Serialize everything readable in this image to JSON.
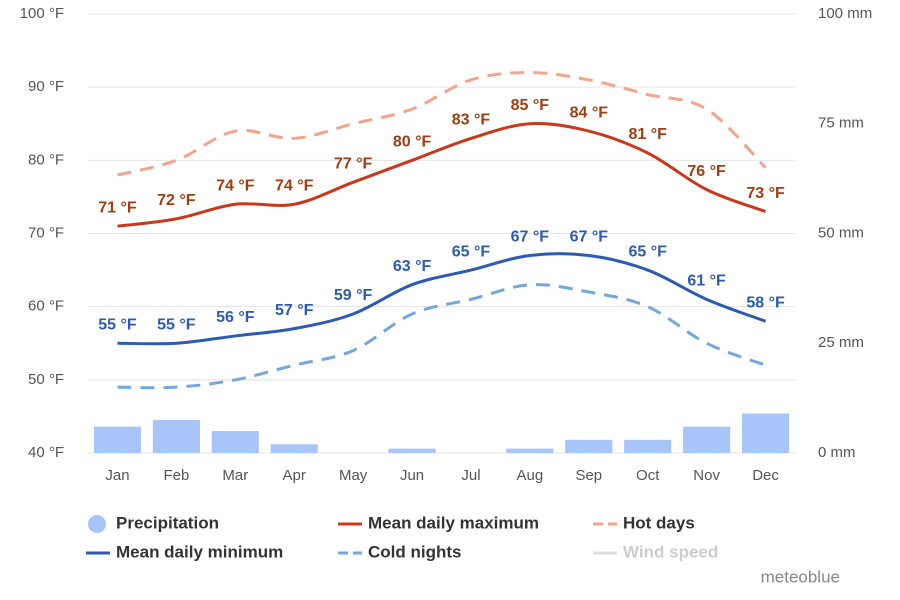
{
  "chart_data": {
    "type": "line",
    "categories": [
      "Jan",
      "Feb",
      "Mar",
      "Apr",
      "May",
      "Jun",
      "Jul",
      "Aug",
      "Sep",
      "Oct",
      "Nov",
      "Dec"
    ],
    "ylim": [
      40,
      100
    ],
    "yticks": [
      {
        "value": 40,
        "label": "40 °F"
      },
      {
        "value": 50,
        "label": "50 °F"
      },
      {
        "value": 60,
        "label": "60 °F"
      },
      {
        "value": 70,
        "label": "70 °F"
      },
      {
        "value": 80,
        "label": "80 °F"
      },
      {
        "value": 90,
        "label": "90 °F"
      },
      {
        "value": 100,
        "label": "100 °F"
      }
    ],
    "y2lim": [
      0,
      100
    ],
    "y2ticks": [
      {
        "value": 0,
        "label": "0 mm"
      },
      {
        "value": 25,
        "label": "25 mm"
      },
      {
        "value": 50,
        "label": "50 mm"
      },
      {
        "value": 75,
        "label": "75 mm"
      },
      {
        "value": 100,
        "label": "100 mm"
      }
    ],
    "grid": true,
    "legend": "bottom",
    "series": [
      {
        "name": "Precipitation",
        "type": "bar",
        "axis": "y2",
        "color": "#a8c5fa",
        "values": [
          6,
          7.5,
          5,
          2,
          0,
          1,
          0,
          1,
          3,
          3,
          6,
          9
        ]
      },
      {
        "name": "Mean daily maximum",
        "type": "line",
        "color": "#c8381b",
        "label_color": "#a33c10",
        "values": [
          71,
          72,
          74,
          74,
          77,
          80,
          83,
          85,
          84,
          81,
          76,
          73
        ],
        "value_labels": [
          "71 °F",
          "72 °F",
          "74 °F",
          "74 °F",
          "77 °F",
          "80 °F",
          "83 °F",
          "85 °F",
          "84 °F",
          "81 °F",
          "76 °F",
          "73 °F"
        ]
      },
      {
        "name": "Hot days",
        "type": "line",
        "dashed": true,
        "color": "#f4a48c",
        "values": [
          78,
          80,
          84,
          83,
          85,
          87,
          91,
          92,
          91,
          89,
          87,
          79
        ]
      },
      {
        "name": "Mean daily minimum",
        "type": "line",
        "color": "#2c5bb5",
        "label_color": "#2c5bb5",
        "values": [
          55,
          55,
          56,
          57,
          59,
          63,
          65,
          67,
          67,
          65,
          61,
          58
        ],
        "value_labels": [
          "55 °F",
          "55 °F",
          "56 °F",
          "57 °F",
          "59 °F",
          "63 °F",
          "65 °F",
          "67 °F",
          "67 °F",
          "65 °F",
          "61 °F",
          "58 °F"
        ]
      },
      {
        "name": "Cold nights",
        "type": "line",
        "dashed": true,
        "color": "#73a7df",
        "values": [
          49,
          49,
          50,
          52,
          54,
          59,
          61,
          63,
          62,
          60,
          55,
          52
        ]
      },
      {
        "name": "Wind speed",
        "type": "line",
        "visible": false,
        "color": "#cccccc"
      }
    ],
    "source": "meteoblue"
  }
}
